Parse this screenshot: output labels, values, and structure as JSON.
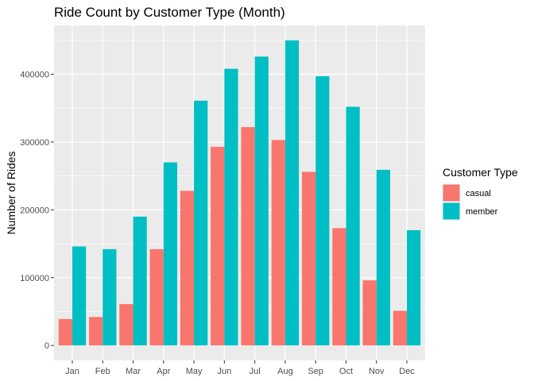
{
  "chart_data": {
    "type": "bar",
    "title": "Ride Count by Customer Type (Month)",
    "xlabel": "",
    "ylabel": "Number of Rides",
    "categories": [
      "Jan",
      "Feb",
      "Mar",
      "Apr",
      "May",
      "Jun",
      "Jul",
      "Aug",
      "Sep",
      "Oct",
      "Nov",
      "Dec"
    ],
    "series": [
      {
        "name": "casual",
        "color": "#F8766D",
        "values": [
          39000,
          42000,
          61000,
          142000,
          228000,
          293000,
          322000,
          303000,
          256000,
          173000,
          96000,
          51000
        ]
      },
      {
        "name": "member",
        "color": "#00BFC4",
        "values": [
          146000,
          142000,
          190000,
          270000,
          361000,
          408000,
          426000,
          450000,
          397000,
          352000,
          259000,
          170000
        ]
      }
    ],
    "ylim": [
      -22000,
      472000
    ],
    "yticks": [
      0,
      100000,
      200000,
      300000,
      400000
    ],
    "ytick_labels": [
      "0",
      "100000",
      "200000",
      "300000",
      "400000"
    ],
    "grid": true,
    "legend": {
      "title": "Customer Type",
      "placement": "right"
    },
    "panel_color": "#EBEBEB"
  }
}
